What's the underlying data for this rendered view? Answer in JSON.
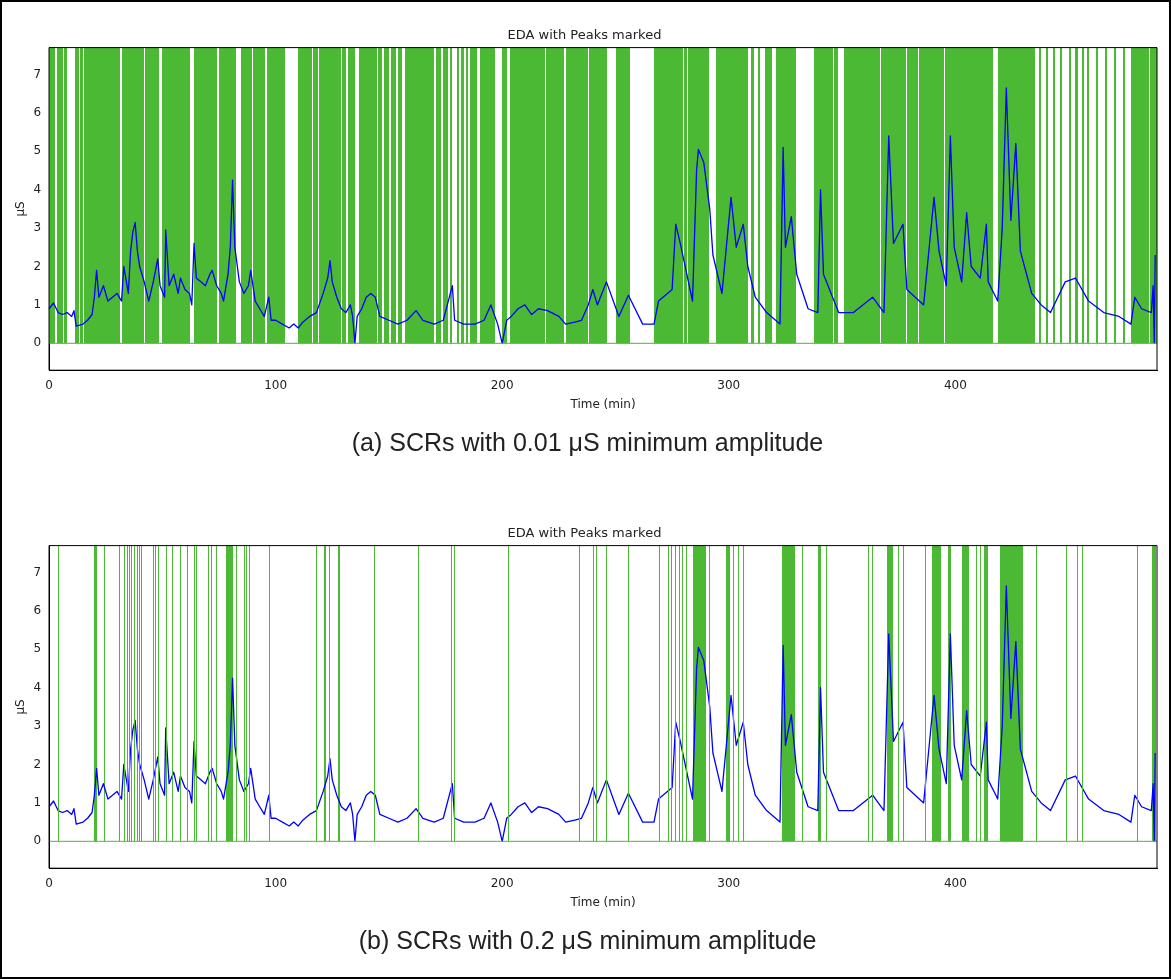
{
  "chart_data": [
    {
      "type": "line",
      "title": "EDA with Peaks marked",
      "xlabel": "Time (min)",
      "ylabel": "μS",
      "annotations": [
        "(a) SCRs with 0.01 μS minimum amplitude"
      ],
      "xlim": [
        0,
        489
      ],
      "xticks": [
        0,
        100,
        200,
        300,
        400
      ],
      "ylim": [
        -0.7,
        7.7
      ],
      "yticks": [
        0,
        1,
        2,
        3,
        4,
        5,
        6,
        7
      ],
      "series": [
        {
          "color": "#0000ff",
          "x": [
            0,
            2,
            4,
            6,
            8,
            10,
            11,
            12,
            15,
            17,
            19,
            20,
            21,
            22,
            24,
            26,
            28,
            30,
            32,
            33,
            35,
            36,
            37,
            38,
            39,
            40,
            42,
            44,
            46,
            48,
            49,
            51,
            51.5,
            53,
            55,
            57,
            58,
            60,
            62,
            63,
            64,
            65,
            67,
            69,
            71,
            72,
            74,
            76,
            77,
            79,
            80,
            81,
            82,
            84,
            86,
            88,
            89,
            91,
            93,
            95,
            97,
            98,
            100,
            103,
            106,
            108,
            110,
            112,
            115,
            118,
            121,
            123,
            124,
            125,
            127,
            129,
            131,
            133,
            134,
            135,
            136,
            138,
            140,
            142,
            144,
            146,
            150,
            154,
            158,
            162,
            165,
            170,
            174,
            178,
            179,
            183,
            188,
            192,
            195,
            198,
            200,
            202,
            204,
            207,
            210,
            213,
            216,
            220,
            225,
            228,
            232,
            235,
            238,
            240,
            242,
            246,
            251.5,
            255.7,
            262,
            267,
            269,
            275,
            276.6,
            278.6,
            284,
            285.8,
            286.6,
            289,
            291.6,
            293,
            297,
            301,
            303.3,
            306.4,
            308.4,
            311.7,
            316.7,
            322.6,
            324,
            325,
            327.6,
            330,
            335,
            339.3,
            340.5,
            341.8,
            348.5,
            355,
            363.5,
            368.5,
            370.6,
            372.7,
            376.9,
            378.6,
            386,
            390.6,
            392.8,
            396,
            397.8,
            399.5,
            402.8,
            405,
            407,
            411,
            413.7,
            414.5,
            418.7,
            420.7,
            422.5,
            424.5,
            426.7,
            428.7,
            433.7,
            437.9,
            442,
            448.5,
            453,
            458.8,
            465.5,
            472.2,
            477.5,
            479.2,
            482.2,
            486.5,
            487.3,
            487.8,
            488.2
          ],
          "values": [
            0.9,
            1.05,
            0.8,
            0.75,
            0.8,
            0.7,
            0.85,
            0.45,
            0.5,
            0.6,
            0.75,
            1.2,
            1.9,
            1.2,
            1.5,
            1.1,
            1.2,
            1.3,
            1.1,
            2.0,
            1.3,
            2.4,
            2.9,
            3.15,
            2.4,
            2.0,
            1.6,
            1.1,
            1.6,
            2.2,
            1.5,
            1.2,
            2.95,
            1.5,
            1.8,
            1.3,
            1.7,
            1.4,
            1.3,
            1.0,
            2.6,
            1.7,
            1.6,
            1.5,
            1.8,
            1.9,
            1.5,
            1.3,
            1.1,
            1.8,
            2.5,
            4.25,
            2.5,
            1.6,
            1.3,
            1.5,
            1.9,
            1.1,
            0.9,
            0.7,
            1.2,
            0.6,
            0.6,
            0.5,
            0.4,
            0.5,
            0.4,
            0.55,
            0.7,
            0.8,
            1.3,
            1.7,
            2.15,
            1.6,
            1.2,
            0.9,
            0.8,
            1.0,
            0.7,
            0.0,
            0.7,
            0.9,
            1.2,
            1.3,
            1.2,
            0.7,
            0.6,
            0.5,
            0.6,
            0.85,
            0.6,
            0.5,
            0.6,
            1.5,
            0.6,
            0.5,
            0.5,
            0.6,
            1.0,
            0.5,
            0.0,
            0.6,
            0.7,
            0.9,
            1.0,
            0.75,
            0.9,
            0.85,
            0.7,
            0.5,
            0.55,
            0.6,
            1.0,
            1.4,
            1.0,
            1.6,
            0.7,
            1.25,
            0.5,
            0.5,
            1.1,
            1.4,
            3.1,
            2.6,
            1.1,
            4.5,
            5.05,
            4.7,
            3.5,
            2.3,
            1.3,
            3.8,
            2.5,
            3.1,
            2.0,
            1.2,
            0.8,
            0.5,
            5.1,
            2.5,
            3.3,
            1.8,
            0.9,
            0.8,
            4.0,
            1.8,
            0.8,
            0.8,
            1.2,
            0.8,
            5.4,
            2.6,
            3.1,
            1.4,
            1.0,
            3.8,
            2.4,
            1.5,
            5.4,
            2.5,
            1.6,
            3.4,
            2.0,
            1.7,
            3.1,
            1.6,
            1.1,
            3.0,
            6.65,
            3.2,
            5.2,
            2.4,
            1.3,
            1.0,
            0.8,
            1.6,
            1.7,
            1.1,
            0.8,
            0.7,
            0.5,
            1.2,
            0.9,
            0.8,
            1.5,
            0.0,
            2.3
          ]
        }
      ],
      "ref_lines": [
        {
          "axis": "y",
          "value": 0,
          "color": "#4cb934"
        }
      ],
      "bands": [
        {
          "axis": "x",
          "from": 0,
          "to": 2.5,
          "color": "#4cb934"
        },
        {
          "axis": "x",
          "from": 3.5,
          "to": 6,
          "color": "#4cb934"
        },
        {
          "axis": "x",
          "from": 6.8,
          "to": 8,
          "color": "#4cb934"
        },
        {
          "axis": "x",
          "from": 11.5,
          "to": 13.2,
          "color": "#4cb934"
        },
        {
          "axis": "x",
          "from": 13.8,
          "to": 15,
          "color": "#4cb934"
        },
        {
          "axis": "x",
          "from": 15.5,
          "to": 31.5,
          "color": "#4cb934"
        },
        {
          "axis": "x",
          "from": 32.3,
          "to": 41.7,
          "color": "#4cb934"
        },
        {
          "axis": "x",
          "from": 42.3,
          "to": 48.7,
          "color": "#4cb934"
        },
        {
          "axis": "x",
          "from": 50,
          "to": 62.3,
          "color": "#4cb934"
        },
        {
          "axis": "x",
          "from": 64.2,
          "to": 74,
          "color": "#4cb934"
        },
        {
          "axis": "x",
          "from": 74.8,
          "to": 82.3,
          "color": "#4cb934"
        },
        {
          "axis": "x",
          "from": 84.6,
          "to": 89.5,
          "color": "#4cb934"
        },
        {
          "axis": "x",
          "from": 90.1,
          "to": 95.5,
          "color": "#4cb934"
        },
        {
          "axis": "x",
          "from": 96,
          "to": 104.2,
          "color": "#4cb934"
        },
        {
          "axis": "x",
          "from": 110,
          "to": 116,
          "color": "#4cb934"
        },
        {
          "axis": "x",
          "from": 116.5,
          "to": 118.5,
          "color": "#4cb934"
        },
        {
          "axis": "x",
          "from": 119,
          "to": 128.8,
          "color": "#4cb934"
        },
        {
          "axis": "x",
          "from": 129.3,
          "to": 131,
          "color": "#4cb934"
        },
        {
          "axis": "x",
          "from": 132,
          "to": 135,
          "color": "#4cb934"
        },
        {
          "axis": "x",
          "from": 137,
          "to": 144.7,
          "color": "#4cb934"
        },
        {
          "axis": "x",
          "from": 145.3,
          "to": 147,
          "color": "#4cb934"
        },
        {
          "axis": "x",
          "from": 148,
          "to": 150,
          "color": "#4cb934"
        },
        {
          "axis": "x",
          "from": 151,
          "to": 153,
          "color": "#4cb934"
        },
        {
          "axis": "x",
          "from": 154,
          "to": 156,
          "color": "#4cb934"
        },
        {
          "axis": "x",
          "from": 157,
          "to": 170,
          "color": "#4cb934"
        },
        {
          "axis": "x",
          "from": 171,
          "to": 173,
          "color": "#4cb934"
        },
        {
          "axis": "x",
          "from": 174,
          "to": 176,
          "color": "#4cb934"
        },
        {
          "axis": "x",
          "from": 177,
          "to": 178,
          "color": "#4cb934"
        },
        {
          "axis": "x",
          "from": 180,
          "to": 181,
          "color": "#4cb934"
        },
        {
          "axis": "x",
          "from": 182,
          "to": 183,
          "color": "#4cb934"
        },
        {
          "axis": "x",
          "from": 184,
          "to": 185,
          "color": "#4cb934"
        },
        {
          "axis": "x",
          "from": 186,
          "to": 189,
          "color": "#4cb934"
        },
        {
          "axis": "x",
          "from": 190,
          "to": 196.8,
          "color": "#4cb934"
        },
        {
          "axis": "x",
          "from": 200,
          "to": 202,
          "color": "#4cb934"
        },
        {
          "axis": "x",
          "from": 203.5,
          "to": 218.8,
          "color": "#4cb934"
        },
        {
          "axis": "x",
          "from": 219.3,
          "to": 227.5,
          "color": "#4cb934"
        },
        {
          "axis": "x",
          "from": 228,
          "to": 237.8,
          "color": "#4cb934"
        },
        {
          "axis": "x",
          "from": 238.3,
          "to": 246.3,
          "color": "#4cb934"
        },
        {
          "axis": "x",
          "from": 250.4,
          "to": 256.3,
          "color": "#4cb934"
        },
        {
          "axis": "x",
          "from": 266.8,
          "to": 279.8,
          "color": "#4cb934"
        },
        {
          "axis": "x",
          "from": 280.3,
          "to": 281.4,
          "color": "#4cb934"
        },
        {
          "axis": "x",
          "from": 281.9,
          "to": 291.4,
          "color": "#4cb934"
        },
        {
          "axis": "x",
          "from": 294.3,
          "to": 308.3,
          "color": "#4cb934"
        },
        {
          "axis": "x",
          "from": 310,
          "to": 311,
          "color": "#4cb934"
        },
        {
          "axis": "x",
          "from": 313,
          "to": 314,
          "color": "#4cb934"
        },
        {
          "axis": "x",
          "from": 316,
          "to": 319,
          "color": "#4cb934"
        },
        {
          "axis": "x",
          "from": 321,
          "to": 329.8,
          "color": "#4cb934"
        },
        {
          "axis": "x",
          "from": 337.8,
          "to": 345.8,
          "color": "#4cb934"
        },
        {
          "axis": "x",
          "from": 346.3,
          "to": 348,
          "color": "#4cb934"
        },
        {
          "axis": "x",
          "from": 351,
          "to": 366.7,
          "color": "#4cb934"
        },
        {
          "axis": "x",
          "from": 367.1,
          "to": 378.4,
          "color": "#4cb934"
        },
        {
          "axis": "x",
          "from": 378.8,
          "to": 383.4,
          "color": "#4cb934"
        },
        {
          "axis": "x",
          "from": 383.8,
          "to": 395.1,
          "color": "#4cb934"
        },
        {
          "axis": "x",
          "from": 395.5,
          "to": 416.8,
          "color": "#4cb934"
        },
        {
          "axis": "x",
          "from": 418.9,
          "to": 435.3,
          "color": "#4cb934"
        },
        {
          "axis": "x",
          "from": 437,
          "to": 438,
          "color": "#4cb934"
        },
        {
          "axis": "x",
          "from": 440,
          "to": 441,
          "color": "#4cb934"
        },
        {
          "axis": "x",
          "from": 443,
          "to": 444,
          "color": "#4cb934"
        },
        {
          "axis": "x",
          "from": 446,
          "to": 447,
          "color": "#4cb934"
        },
        {
          "axis": "x",
          "from": 450,
          "to": 451,
          "color": "#4cb934"
        },
        {
          "axis": "x",
          "from": 453,
          "to": 454,
          "color": "#4cb934"
        },
        {
          "axis": "x",
          "from": 456,
          "to": 457,
          "color": "#4cb934"
        },
        {
          "axis": "x",
          "from": 458,
          "to": 458.8,
          "color": "#4cb934"
        },
        {
          "axis": "x",
          "from": 462,
          "to": 463,
          "color": "#4cb934"
        },
        {
          "axis": "x",
          "from": 466,
          "to": 467,
          "color": "#4cb934"
        },
        {
          "axis": "x",
          "from": 470,
          "to": 471,
          "color": "#4cb934"
        },
        {
          "axis": "x",
          "from": 474,
          "to": 475,
          "color": "#4cb934"
        },
        {
          "axis": "x",
          "from": 477.5,
          "to": 485.4,
          "color": "#4cb934"
        },
        {
          "axis": "x",
          "from": 485.8,
          "to": 489,
          "color": "#4cb934"
        }
      ]
    },
    {
      "type": "line",
      "title": "EDA with Peaks marked",
      "xlabel": "Time (min)",
      "ylabel": "μS",
      "annotations": [
        "(b) SCRs with 0.2 μS minimum amplitude"
      ],
      "xlim": [
        0,
        489
      ],
      "xticks": [
        0,
        100,
        200,
        300,
        400
      ],
      "ylim": [
        -0.7,
        7.7
      ],
      "yticks": [
        0,
        1,
        2,
        3,
        4,
        5,
        6,
        7
      ],
      "series": [
        {
          "color": "#0000ff",
          "x": [
            0,
            2,
            4,
            6,
            8,
            10,
            11,
            12,
            15,
            17,
            19,
            20,
            21,
            22,
            24,
            26,
            28,
            30,
            32,
            33,
            35,
            36,
            37,
            38,
            39,
            40,
            42,
            44,
            46,
            48,
            49,
            51,
            51.5,
            53,
            55,
            57,
            58,
            60,
            62,
            63,
            64,
            65,
            67,
            69,
            71,
            72,
            74,
            76,
            77,
            79,
            80,
            81,
            82,
            84,
            86,
            88,
            89,
            91,
            93,
            95,
            97,
            98,
            100,
            103,
            106,
            108,
            110,
            112,
            115,
            118,
            121,
            123,
            124,
            125,
            127,
            129,
            131,
            133,
            134,
            135,
            136,
            138,
            140,
            142,
            144,
            146,
            150,
            154,
            158,
            162,
            165,
            170,
            174,
            178,
            179,
            183,
            188,
            192,
            195,
            198,
            200,
            202,
            204,
            207,
            210,
            213,
            216,
            220,
            225,
            228,
            232,
            235,
            238,
            240,
            242,
            246,
            251.5,
            255.7,
            262,
            267,
            269,
            275,
            276.6,
            278.6,
            284,
            285.8,
            286.6,
            289,
            291.6,
            293,
            297,
            301,
            303.3,
            306.4,
            308.4,
            311.7,
            316.7,
            322.6,
            324,
            325,
            327.6,
            330,
            335,
            339.3,
            340.5,
            341.8,
            348.5,
            355,
            363.5,
            368.5,
            370.6,
            372.7,
            376.9,
            378.6,
            386,
            390.6,
            392.8,
            396,
            397.8,
            399.5,
            402.8,
            405,
            407,
            411,
            413.7,
            414.5,
            418.7,
            420.7,
            422.5,
            424.5,
            426.7,
            428.7,
            433.7,
            437.9,
            442,
            448.5,
            453,
            458.8,
            465.5,
            472.2,
            477.5,
            479.2,
            482.2,
            486.5,
            487.3,
            487.8,
            488.2
          ],
          "values": [
            0.9,
            1.05,
            0.8,
            0.75,
            0.8,
            0.7,
            0.85,
            0.45,
            0.5,
            0.6,
            0.75,
            1.2,
            1.9,
            1.2,
            1.5,
            1.1,
            1.2,
            1.3,
            1.1,
            2.0,
            1.3,
            2.4,
            2.9,
            3.15,
            2.4,
            2.0,
            1.6,
            1.1,
            1.6,
            2.2,
            1.5,
            1.2,
            2.95,
            1.5,
            1.8,
            1.3,
            1.7,
            1.4,
            1.3,
            1.0,
            2.6,
            1.7,
            1.6,
            1.5,
            1.8,
            1.9,
            1.5,
            1.3,
            1.1,
            1.8,
            2.5,
            4.25,
            2.5,
            1.6,
            1.3,
            1.5,
            1.9,
            1.1,
            0.9,
            0.7,
            1.2,
            0.6,
            0.6,
            0.5,
            0.4,
            0.5,
            0.4,
            0.55,
            0.7,
            0.8,
            1.3,
            1.7,
            2.15,
            1.6,
            1.2,
            0.9,
            0.8,
            1.0,
            0.7,
            0.0,
            0.7,
            0.9,
            1.2,
            1.3,
            1.2,
            0.7,
            0.6,
            0.5,
            0.6,
            0.85,
            0.6,
            0.5,
            0.6,
            1.5,
            0.6,
            0.5,
            0.5,
            0.6,
            1.0,
            0.5,
            0.0,
            0.6,
            0.7,
            0.9,
            1.0,
            0.75,
            0.9,
            0.85,
            0.7,
            0.5,
            0.55,
            0.6,
            1.0,
            1.4,
            1.0,
            1.6,
            0.7,
            1.25,
            0.5,
            0.5,
            1.1,
            1.4,
            3.1,
            2.6,
            1.1,
            4.5,
            5.05,
            4.7,
            3.5,
            2.3,
            1.3,
            3.8,
            2.5,
            3.1,
            2.0,
            1.2,
            0.8,
            0.5,
            5.1,
            2.5,
            3.3,
            1.8,
            0.9,
            0.8,
            4.0,
            1.8,
            0.8,
            0.8,
            1.2,
            0.8,
            5.4,
            2.6,
            3.1,
            1.4,
            1.0,
            3.8,
            2.4,
            1.5,
            5.4,
            2.5,
            1.6,
            3.4,
            2.0,
            1.7,
            3.1,
            1.6,
            1.1,
            3.0,
            6.65,
            3.2,
            5.2,
            2.4,
            1.3,
            1.0,
            0.8,
            1.6,
            1.7,
            1.1,
            0.8,
            0.7,
            0.5,
            1.2,
            0.9,
            0.8,
            1.5,
            0.0,
            2.3
          ]
        }
      ],
      "ref_lines": [
        {
          "axis": "y",
          "value": 0,
          "color": "#4cb934"
        },
        {
          "axis": "x",
          "value": 4,
          "color": "#4cb934"
        },
        {
          "axis": "x",
          "value": 31,
          "color": "#4cb934"
        },
        {
          "axis": "x",
          "value": 33,
          "color": "#4cb934"
        },
        {
          "axis": "x",
          "value": 34.3,
          "color": "#4cb934"
        },
        {
          "axis": "x",
          "value": 35.3,
          "color": "#4cb934"
        },
        {
          "axis": "x",
          "value": 36.3,
          "color": "#4cb934"
        },
        {
          "axis": "x",
          "value": 37.6,
          "color": "#4cb934"
        },
        {
          "axis": "x",
          "value": 38.7,
          "color": "#4cb934"
        },
        {
          "axis": "x",
          "value": 39.7,
          "color": "#4cb934"
        },
        {
          "axis": "x",
          "value": 40.7,
          "color": "#4cb934"
        },
        {
          "axis": "x",
          "value": 45.8,
          "color": "#4cb934"
        },
        {
          "axis": "x",
          "value": 46.8,
          "color": "#4cb934"
        },
        {
          "axis": "x",
          "value": 47.9,
          "color": "#4cb934"
        },
        {
          "axis": "x",
          "value": 51.6,
          "color": "#4cb934"
        },
        {
          "axis": "x",
          "value": 54.3,
          "color": "#4cb934"
        },
        {
          "axis": "x",
          "value": 57.6,
          "color": "#4cb934"
        },
        {
          "axis": "x",
          "value": 60.8,
          "color": "#4cb934"
        },
        {
          "axis": "x",
          "value": 64.2,
          "color": "#4cb934"
        },
        {
          "axis": "x",
          "value": 64.7,
          "color": "#4cb934"
        },
        {
          "axis": "x",
          "value": 70,
          "color": "#4cb934"
        },
        {
          "axis": "x",
          "value": 71.4,
          "color": "#4cb934"
        },
        {
          "axis": "x",
          "value": 73.8,
          "color": "#4cb934"
        },
        {
          "axis": "x",
          "value": 82.3,
          "color": "#4cb934"
        },
        {
          "axis": "x",
          "value": 86,
          "color": "#4cb934"
        },
        {
          "axis": "x",
          "value": 87,
          "color": "#4cb934"
        },
        {
          "axis": "x",
          "value": 88.4,
          "color": "#4cb934"
        },
        {
          "axis": "x",
          "value": 97.3,
          "color": "#4cb934"
        },
        {
          "axis": "x",
          "value": 117.7,
          "color": "#4cb934"
        },
        {
          "axis": "x",
          "value": 123.5,
          "color": "#4cb934"
        },
        {
          "axis": "x",
          "value": 143.3,
          "color": "#4cb934"
        },
        {
          "axis": "x",
          "value": 162.9,
          "color": "#4cb934"
        },
        {
          "axis": "x",
          "value": 177.4,
          "color": "#4cb934"
        },
        {
          "axis": "x",
          "value": 178.7,
          "color": "#4cb934"
        },
        {
          "axis": "x",
          "value": 202.6,
          "color": "#4cb934"
        },
        {
          "axis": "x",
          "value": 233.8,
          "color": "#4cb934"
        },
        {
          "axis": "x",
          "value": 239.9,
          "color": "#4cb934"
        },
        {
          "axis": "x",
          "value": 241.4,
          "color": "#4cb934"
        },
        {
          "axis": "x",
          "value": 245.8,
          "color": "#4cb934"
        },
        {
          "axis": "x",
          "value": 255.5,
          "color": "#4cb934"
        },
        {
          "axis": "x",
          "value": 269.3,
          "color": "#4cb934"
        },
        {
          "axis": "x",
          "value": 273,
          "color": "#4cb934"
        },
        {
          "axis": "x",
          "value": 274.3,
          "color": "#4cb934"
        },
        {
          "axis": "x",
          "value": 276.3,
          "color": "#4cb934"
        },
        {
          "axis": "x",
          "value": 278,
          "color": "#4cb934"
        },
        {
          "axis": "x",
          "value": 279.4,
          "color": "#4cb934"
        },
        {
          "axis": "x",
          "value": 281,
          "color": "#4cb934"
        },
        {
          "axis": "x",
          "value": 291.4,
          "color": "#4cb934"
        },
        {
          "axis": "x",
          "value": 302,
          "color": "#4cb934"
        },
        {
          "axis": "x",
          "value": 304.2,
          "color": "#4cb934"
        },
        {
          "axis": "x",
          "value": 306.5,
          "color": "#4cb934"
        },
        {
          "axis": "x",
          "value": 332.2,
          "color": "#4cb934"
        },
        {
          "axis": "x",
          "value": 343.1,
          "color": "#4cb934"
        },
        {
          "axis": "x",
          "value": 361.6,
          "color": "#4cb934"
        },
        {
          "axis": "x",
          "value": 363.3,
          "color": "#4cb934"
        },
        {
          "axis": "x",
          "value": 374.7,
          "color": "#4cb934"
        },
        {
          "axis": "x",
          "value": 377.1,
          "color": "#4cb934"
        },
        {
          "axis": "x",
          "value": 386.7,
          "color": "#4cb934"
        },
        {
          "axis": "x",
          "value": 408.9,
          "color": "#4cb934"
        },
        {
          "axis": "x",
          "value": 411.1,
          "color": "#4cb934"
        },
        {
          "axis": "x",
          "value": 435.4,
          "color": "#4cb934"
        },
        {
          "axis": "x",
          "value": 448.8,
          "color": "#4cb934"
        },
        {
          "axis": "x",
          "value": 453.5,
          "color": "#4cb934"
        },
        {
          "axis": "x",
          "value": 455.8,
          "color": "#4cb934"
        },
        {
          "axis": "x",
          "value": 480.3,
          "color": "#4cb934"
        }
      ],
      "bands": [
        {
          "axis": "x",
          "from": 19.8,
          "to": 21.2,
          "color": "#4cb934"
        },
        {
          "axis": "x",
          "from": 24.3,
          "to": 24.8,
          "color": "#4cb934"
        },
        {
          "axis": "x",
          "from": 78,
          "to": 81,
          "color": "#4cb934"
        },
        {
          "axis": "x",
          "from": 121.4,
          "to": 122.2,
          "color": "#4cb934"
        },
        {
          "axis": "x",
          "from": 127.5,
          "to": 128.4,
          "color": "#4cb934"
        },
        {
          "axis": "x",
          "from": 284.2,
          "to": 290,
          "color": "#4cb934"
        },
        {
          "axis": "x",
          "from": 298.8,
          "to": 300.7,
          "color": "#4cb934"
        },
        {
          "axis": "x",
          "from": 323.6,
          "to": 329.1,
          "color": "#4cb934"
        },
        {
          "axis": "x",
          "from": 339.6,
          "to": 340.6,
          "color": "#4cb934"
        },
        {
          "axis": "x",
          "from": 369.8,
          "to": 372.7,
          "color": "#4cb934"
        },
        {
          "axis": "x",
          "from": 389.6,
          "to": 393.7,
          "color": "#4cb934"
        },
        {
          "axis": "x",
          "from": 396.6,
          "to": 398.2,
          "color": "#4cb934"
        },
        {
          "axis": "x",
          "from": 403,
          "to": 406.2,
          "color": "#4cb934"
        },
        {
          "axis": "x",
          "from": 412.6,
          "to": 414.2,
          "color": "#4cb934"
        },
        {
          "axis": "x",
          "from": 419.8,
          "to": 429.7,
          "color": "#4cb934"
        },
        {
          "axis": "x",
          "from": 486.9,
          "to": 488.5,
          "color": "#4cb934"
        }
      ]
    }
  ]
}
